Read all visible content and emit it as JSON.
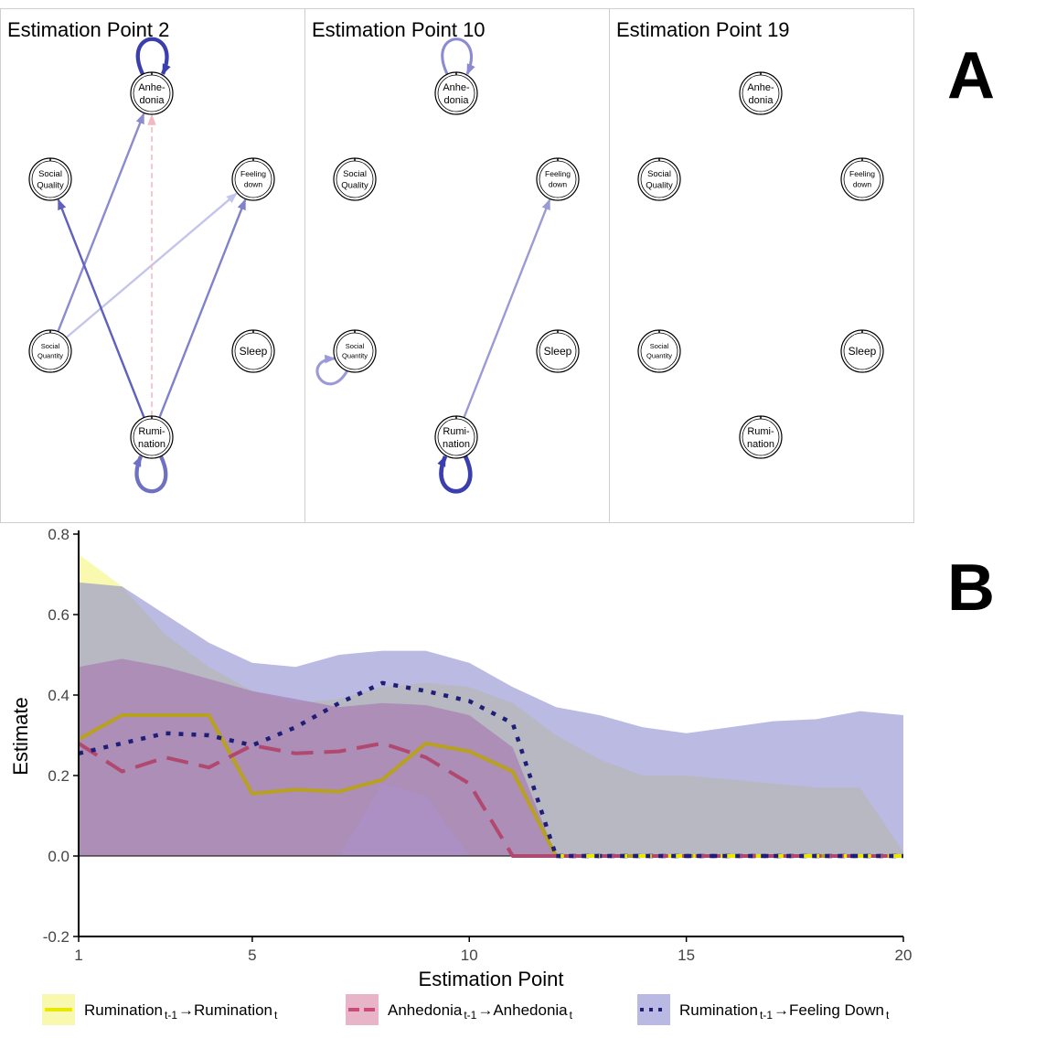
{
  "panel_a": {
    "letter": "A",
    "node_labels": {
      "anhedonia": [
        "Anhe-",
        "donia"
      ],
      "social_quality": [
        "Social",
        "Quality"
      ],
      "feeling_down": [
        "Feeling",
        "down"
      ],
      "social_quantity": [
        "Social",
        "Quantity"
      ],
      "sleep": [
        "Sleep"
      ],
      "rumination": [
        "Rumi-",
        "nation"
      ]
    },
    "networks": [
      {
        "title": "Estimation Point 2",
        "self_loops": [
          {
            "node": "anhedonia",
            "weight": 0.35,
            "color": "#3b3fae"
          },
          {
            "node": "rumination",
            "weight": 0.35,
            "color": "#6e70c4"
          }
        ],
        "edges": [
          {
            "from": "social_quantity",
            "to": "anhedonia",
            "color": "#8a8bd0"
          },
          {
            "from": "social_quantity",
            "to": "feeling_down",
            "color": "#c4c5ea"
          },
          {
            "from": "rumination",
            "to": "social_quality",
            "color": "#5f61bd"
          },
          {
            "from": "rumination",
            "to": "feeling_down",
            "color": "#7f81cb"
          },
          {
            "from": "rumination",
            "to": "anhedonia",
            "color": "#f4b9c0",
            "dashed": true
          }
        ]
      },
      {
        "title": "Estimation Point 10",
        "self_loops": [
          {
            "node": "anhedonia",
            "weight": 0.2,
            "color": "#8a8bd0"
          },
          {
            "node": "social_quantity",
            "weight": 0.2,
            "color": "#9a9bd6"
          },
          {
            "node": "rumination",
            "weight": 0.4,
            "color": "#3a3eae"
          }
        ],
        "edges": [
          {
            "from": "rumination",
            "to": "feeling_down",
            "color": "#9a9bd6"
          }
        ]
      },
      {
        "title": "Estimation Point 19",
        "self_loops": [],
        "edges": []
      }
    ]
  },
  "panel_b": {
    "letter": "B"
  },
  "chart_data": {
    "type": "line",
    "xlabel": "Estimation Point",
    "ylabel": "Estimate",
    "xlim": [
      1,
      20
    ],
    "ylim": [
      -0.2,
      0.8
    ],
    "xticks": [
      1,
      5,
      10,
      15,
      20
    ],
    "yticks": [
      -0.2,
      0.0,
      0.2,
      0.4,
      0.6,
      0.8
    ],
    "x": [
      1,
      2,
      3,
      4,
      5,
      6,
      7,
      8,
      9,
      10,
      11,
      12,
      13,
      14,
      15,
      16,
      17,
      18,
      19,
      20
    ],
    "series": [
      {
        "name": "Rumination",
        "label_parts": {
          "a": "Rumination",
          "a_sub": "t-1",
          "arrow": "→",
          "b": "Rumination",
          "b_sub": "t"
        },
        "line_color": "#b8a020",
        "band_color": "#f5f57a",
        "legend_line": "#e8e800",
        "legend_fill": "#f8f8b0",
        "dash": "solid",
        "values": [
          0.29,
          0.35,
          0.35,
          0.35,
          0.155,
          0.165,
          0.16,
          0.19,
          0.28,
          0.26,
          0.21,
          0,
          0,
          0,
          0,
          0,
          0,
          0,
          0,
          0
        ],
        "lower": [
          0,
          0,
          0,
          0,
          0,
          0,
          0,
          0.18,
          0.15,
          0,
          0,
          0,
          0,
          0,
          0,
          0,
          0,
          0,
          0,
          0
        ],
        "upper": [
          0.75,
          0.67,
          0.55,
          0.47,
          0.41,
          0.38,
          0.39,
          0.42,
          0.43,
          0.42,
          0.38,
          0.3,
          0.24,
          0.2,
          0.2,
          0.19,
          0.18,
          0.17,
          0.17,
          0.01
        ]
      },
      {
        "name": "Anhedonia",
        "label_parts": {
          "a": "Anhedonia",
          "a_sub": "t-1",
          "arrow": "→",
          "b": "Anhedonia",
          "b_sub": "t"
        },
        "line_color": "#b04870",
        "band_color": "#c74d7e",
        "legend_line": "#c94b78",
        "legend_fill": "#e8b4c8",
        "dash": "long",
        "values": [
          0.28,
          0.21,
          0.245,
          0.22,
          0.275,
          0.255,
          0.26,
          0.28,
          0.245,
          0.18,
          0,
          0,
          0,
          0,
          0,
          0,
          0,
          0,
          0,
          0
        ],
        "lower": [
          0,
          0,
          0,
          0,
          0,
          0,
          0,
          0,
          0,
          0,
          0,
          0,
          0,
          0,
          0,
          0,
          0,
          0,
          0,
          0
        ],
        "upper": [
          0.47,
          0.49,
          0.47,
          0.44,
          0.41,
          0.39,
          0.37,
          0.38,
          0.375,
          0.35,
          0.27,
          0,
          0,
          0,
          0,
          0,
          0,
          0,
          0,
          0
        ]
      },
      {
        "name": "Feeling Down",
        "label_parts": {
          "a": "Rumination",
          "a_sub": "t-1",
          "arrow": "→",
          "b": "Feeling Down",
          "b_sub": "t"
        },
        "line_color": "#1e1e78",
        "band_color": "#8c8ccf",
        "legend_line": "#1e1e78",
        "legend_fill": "#b9b9e3",
        "dash": "dotted",
        "values": [
          0.255,
          0.28,
          0.305,
          0.3,
          0.275,
          0.32,
          0.38,
          0.43,
          0.41,
          0.385,
          0.33,
          0,
          0,
          0,
          0,
          0,
          0,
          0,
          0,
          0
        ],
        "lower": [
          0,
          0,
          0,
          0,
          0,
          0,
          0,
          0,
          0,
          0,
          0,
          0,
          0,
          0,
          0,
          0,
          0,
          0,
          0,
          0
        ],
        "upper": [
          0.68,
          0.67,
          0.6,
          0.53,
          0.48,
          0.47,
          0.5,
          0.51,
          0.51,
          0.48,
          0.42,
          0.37,
          0.35,
          0.32,
          0.305,
          0.32,
          0.335,
          0.34,
          0.36,
          0.35
        ]
      }
    ]
  }
}
